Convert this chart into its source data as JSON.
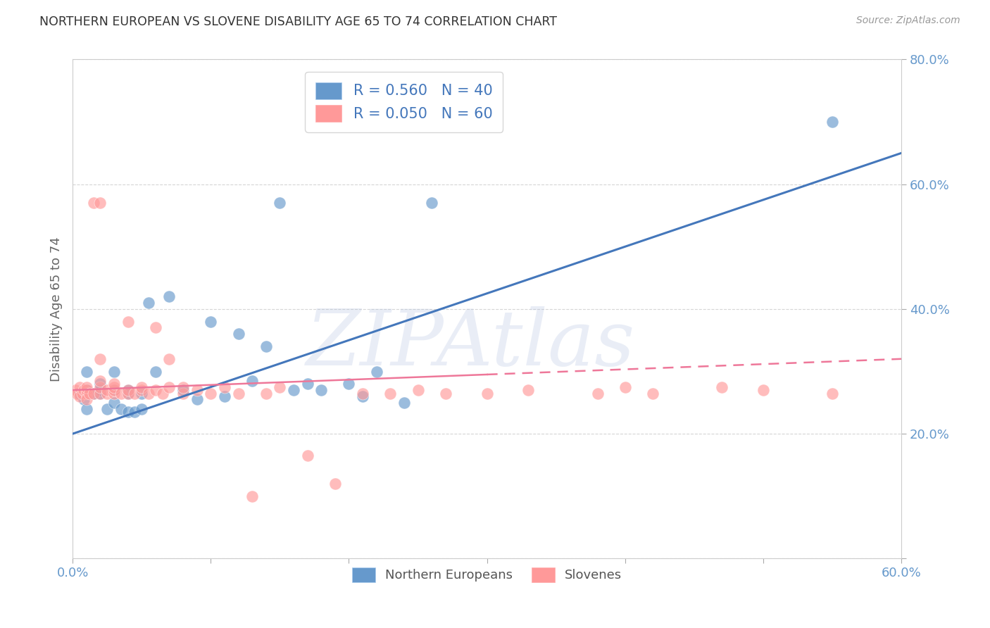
{
  "title": "NORTHERN EUROPEAN VS SLOVENE DISABILITY AGE 65 TO 74 CORRELATION CHART",
  "source": "Source: ZipAtlas.com",
  "ylabel": "Disability Age 65 to 74",
  "xlim": [
    0.0,
    0.6
  ],
  "ylim": [
    0.0,
    0.8
  ],
  "xtick_positions": [
    0.0,
    0.1,
    0.2,
    0.3,
    0.4,
    0.5,
    0.6
  ],
  "xtick_labels": [
    "0.0%",
    "",
    "",
    "",
    "",
    "",
    "60.0%"
  ],
  "ytick_positions": [
    0.0,
    0.2,
    0.4,
    0.6,
    0.8
  ],
  "ytick_labels": [
    "",
    "20.0%",
    "40.0%",
    "60.0%",
    "80.0%"
  ],
  "legend1_label": "R = 0.560   N = 40",
  "legend2_label": "R = 0.050   N = 60",
  "watermark": "ZIPAtlas",
  "blue_color": "#6699CC",
  "pink_color": "#FF9999",
  "blue_line_color": "#4477BB",
  "pink_line_color": "#EE7799",
  "grid_color": "#CCCCCC",
  "title_color": "#333333",
  "axis_tick_color": "#6699CC",
  "blue_line_y0": 0.2,
  "blue_line_y1": 0.65,
  "pink_line_y0": 0.27,
  "pink_line_y1": 0.32,
  "blue_points_x": [
    0.005,
    0.008,
    0.01,
    0.01,
    0.01,
    0.015,
    0.02,
    0.02,
    0.02,
    0.025,
    0.03,
    0.03,
    0.03,
    0.035,
    0.04,
    0.04,
    0.04,
    0.045,
    0.05,
    0.05,
    0.055,
    0.06,
    0.07,
    0.08,
    0.09,
    0.1,
    0.11,
    0.12,
    0.13,
    0.14,
    0.15,
    0.16,
    0.17,
    0.18,
    0.2,
    0.21,
    0.22,
    0.24,
    0.26,
    0.55
  ],
  "blue_points_y": [
    0.265,
    0.255,
    0.24,
    0.27,
    0.3,
    0.265,
    0.265,
    0.27,
    0.28,
    0.24,
    0.25,
    0.27,
    0.3,
    0.24,
    0.235,
    0.265,
    0.27,
    0.235,
    0.24,
    0.265,
    0.41,
    0.3,
    0.42,
    0.27,
    0.255,
    0.38,
    0.26,
    0.36,
    0.285,
    0.34,
    0.57,
    0.27,
    0.28,
    0.27,
    0.28,
    0.26,
    0.3,
    0.25,
    0.57,
    0.7
  ],
  "pink_points_x": [
    0.002,
    0.003,
    0.005,
    0.005,
    0.007,
    0.008,
    0.01,
    0.01,
    0.01,
    0.01,
    0.012,
    0.015,
    0.015,
    0.02,
    0.02,
    0.02,
    0.02,
    0.02,
    0.025,
    0.025,
    0.03,
    0.03,
    0.03,
    0.03,
    0.035,
    0.04,
    0.04,
    0.04,
    0.045,
    0.05,
    0.05,
    0.055,
    0.06,
    0.06,
    0.065,
    0.07,
    0.07,
    0.08,
    0.08,
    0.09,
    0.1,
    0.11,
    0.12,
    0.13,
    0.14,
    0.15,
    0.17,
    0.19,
    0.21,
    0.23,
    0.25,
    0.27,
    0.3,
    0.33,
    0.38,
    0.4,
    0.42,
    0.47,
    0.5,
    0.55
  ],
  "pink_points_y": [
    0.27,
    0.265,
    0.26,
    0.275,
    0.265,
    0.27,
    0.265,
    0.27,
    0.275,
    0.255,
    0.265,
    0.57,
    0.265,
    0.265,
    0.275,
    0.57,
    0.285,
    0.32,
    0.265,
    0.27,
    0.265,
    0.27,
    0.275,
    0.28,
    0.265,
    0.265,
    0.27,
    0.38,
    0.265,
    0.27,
    0.275,
    0.265,
    0.27,
    0.37,
    0.265,
    0.275,
    0.32,
    0.265,
    0.275,
    0.27,
    0.265,
    0.275,
    0.265,
    0.1,
    0.265,
    0.275,
    0.165,
    0.12,
    0.265,
    0.265,
    0.27,
    0.265,
    0.265,
    0.27,
    0.265,
    0.275,
    0.265,
    0.275,
    0.27,
    0.265
  ]
}
